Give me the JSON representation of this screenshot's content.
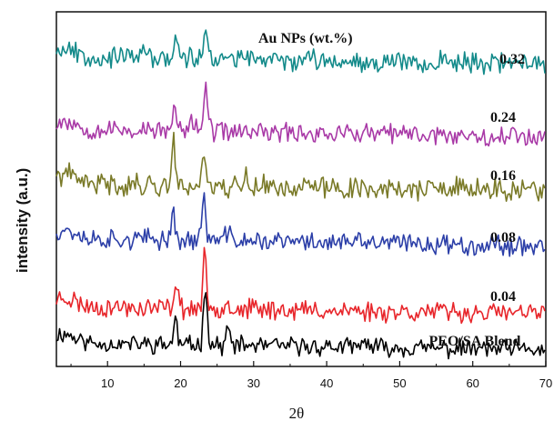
{
  "chart_data": {
    "type": "line",
    "title": "",
    "xlabel": "2θ",
    "ylabel": "intensity (a.u.)",
    "xlim": [
      3,
      70
    ],
    "xticks": [
      10,
      20,
      30,
      40,
      50,
      60,
      70
    ],
    "legend_title": "Au NPs (wt.%)",
    "grid": false,
    "series": [
      {
        "name": "PEO/SA Blend",
        "color": "#000000",
        "baseline": 0,
        "peaks": [
          [
            19.3,
            27
          ],
          [
            23.4,
            70
          ],
          [
            26.5,
            18
          ],
          [
            45.5,
            10
          ]
        ],
        "noise": 8,
        "seed": 11
      },
      {
        "name": "0.04",
        "color": "#e8262b",
        "baseline": 1,
        "peaks": [
          [
            19.4,
            33
          ],
          [
            23.3,
            56
          ],
          [
            26.2,
            14
          ]
        ],
        "noise": 9,
        "seed": 23
      },
      {
        "name": "0.08",
        "color": "#2c3fa8",
        "baseline": 2,
        "peaks": [
          [
            18.9,
            34
          ],
          [
            23.2,
            53
          ],
          [
            26.5,
            12
          ]
        ],
        "noise": 9,
        "seed": 37
      },
      {
        "name": "0.16",
        "color": "#7a7a28",
        "baseline": 3,
        "peaks": [
          [
            19.0,
            48
          ],
          [
            23.1,
            40
          ],
          [
            28.9,
            16
          ]
        ],
        "noise": 10,
        "seed": 41
      },
      {
        "name": "0.24",
        "color": "#a93aa7",
        "baseline": 4,
        "peaks": [
          [
            19.2,
            25
          ],
          [
            23.4,
            55
          ],
          [
            21.8,
            14
          ]
        ],
        "noise": 9,
        "seed": 53
      },
      {
        "name": "0.32",
        "color": "#138a8a",
        "baseline": 5,
        "peaks": [
          [
            19.4,
            24
          ],
          [
            23.5,
            36
          ],
          [
            15.0,
            10
          ]
        ],
        "noise": 9,
        "seed": 67
      }
    ]
  }
}
